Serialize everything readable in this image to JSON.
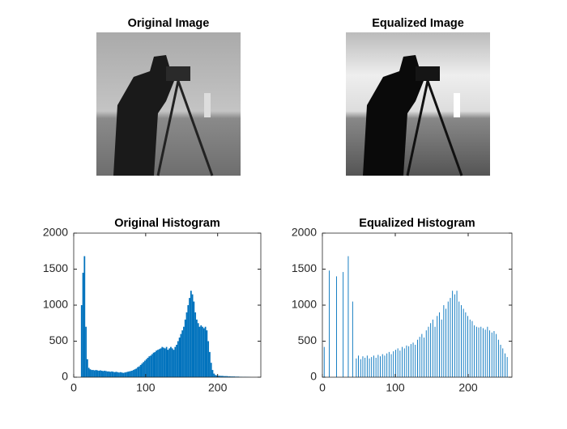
{
  "images": [
    {
      "title": "Original Image"
    },
    {
      "title": "Equalized Image"
    }
  ],
  "chart_data": [
    {
      "type": "bar",
      "title": "Original Histogram",
      "color": "#0072bd",
      "xlim": [
        0,
        260
      ],
      "xticks": [
        0,
        100,
        200
      ],
      "ylim": [
        0,
        2000
      ],
      "yticks": [
        0,
        500,
        1000,
        1500,
        2000
      ],
      "x": [
        0,
        2,
        4,
        6,
        8,
        10,
        12,
        14,
        16,
        18,
        20,
        22,
        24,
        26,
        28,
        30,
        32,
        34,
        36,
        38,
        40,
        42,
        44,
        46,
        48,
        50,
        52,
        54,
        56,
        58,
        60,
        62,
        64,
        66,
        68,
        70,
        72,
        74,
        76,
        78,
        80,
        82,
        84,
        86,
        88,
        90,
        92,
        94,
        96,
        98,
        100,
        102,
        104,
        106,
        108,
        110,
        112,
        114,
        116,
        118,
        120,
        122,
        124,
        126,
        128,
        130,
        132,
        134,
        136,
        138,
        140,
        142,
        144,
        146,
        148,
        150,
        152,
        154,
        156,
        158,
        160,
        162,
        164,
        166,
        168,
        170,
        172,
        174,
        176,
        178,
        180,
        182,
        184,
        186,
        188,
        190,
        192,
        194,
        196,
        198,
        200,
        202,
        204,
        206,
        208,
        210,
        212,
        214,
        216,
        218,
        220,
        222,
        224,
        226,
        228,
        230,
        232,
        234,
        236,
        238,
        240,
        242,
        244,
        246,
        248,
        250,
        252,
        254
      ],
      "values": [
        0,
        0,
        0,
        0,
        0,
        1000,
        1450,
        1680,
        700,
        250,
        130,
        110,
        100,
        100,
        95,
        100,
        95,
        90,
        95,
        90,
        85,
        90,
        85,
        80,
        80,
        75,
        80,
        75,
        70,
        75,
        70,
        65,
        70,
        65,
        60,
        65,
        70,
        75,
        80,
        85,
        90,
        100,
        110,
        120,
        140,
        150,
        170,
        190,
        210,
        230,
        250,
        270,
        290,
        300,
        320,
        340,
        350,
        370,
        380,
        390,
        400,
        420,
        410,
        400,
        420,
        380,
        400,
        420,
        400,
        380,
        420,
        450,
        500,
        550,
        600,
        650,
        700,
        800,
        900,
        1000,
        1100,
        1200,
        1150,
        1050,
        900,
        800,
        750,
        700,
        720,
        700,
        680,
        700,
        650,
        500,
        350,
        200,
        100,
        50,
        30,
        25,
        20,
        20,
        18,
        18,
        15,
        15,
        15,
        12,
        12,
        10,
        10,
        10,
        8,
        8,
        8,
        6,
        6,
        5,
        5,
        5,
        4,
        3,
        2,
        0,
        0,
        0,
        0,
        0
      ]
    },
    {
      "type": "bar",
      "title": "Equalized Histogram",
      "color": "#0072bd",
      "xlim": [
        0,
        260
      ],
      "xticks": [
        0,
        100,
        200
      ],
      "ylim": [
        0,
        2000
      ],
      "yticks": [
        0,
        500,
        1000,
        1500,
        2000
      ],
      "x": [
        2,
        9,
        19,
        28,
        35,
        41,
        46,
        49,
        52,
        55,
        58,
        61,
        64,
        67,
        70,
        73,
        76,
        79,
        82,
        85,
        88,
        91,
        94,
        97,
        100,
        103,
        106,
        109,
        112,
        115,
        118,
        121,
        124,
        127,
        130,
        133,
        136,
        139,
        142,
        145,
        148,
        151,
        154,
        157,
        160,
        163,
        166,
        169,
        172,
        175,
        178,
        181,
        184,
        187,
        190,
        193,
        196,
        199,
        202,
        205,
        208,
        211,
        214,
        217,
        220,
        223,
        226,
        229,
        232,
        235,
        238,
        241,
        244,
        247,
        250,
        253
      ],
      "values": [
        420,
        1480,
        1400,
        1460,
        1680,
        1050,
        260,
        300,
        250,
        290,
        270,
        300,
        260,
        280,
        300,
        270,
        310,
        290,
        320,
        300,
        330,
        350,
        320,
        360,
        380,
        400,
        370,
        420,
        400,
        440,
        430,
        460,
        480,
        450,
        520,
        560,
        600,
        550,
        650,
        700,
        750,
        800,
        700,
        850,
        900,
        800,
        1000,
        950,
        1050,
        1100,
        1200,
        1150,
        1200,
        1050,
        1000,
        950,
        900,
        850,
        800,
        780,
        720,
        700,
        690,
        700,
        680,
        660,
        700,
        650,
        620,
        640,
        600,
        520,
        450,
        400,
        330,
        280
      ]
    }
  ]
}
